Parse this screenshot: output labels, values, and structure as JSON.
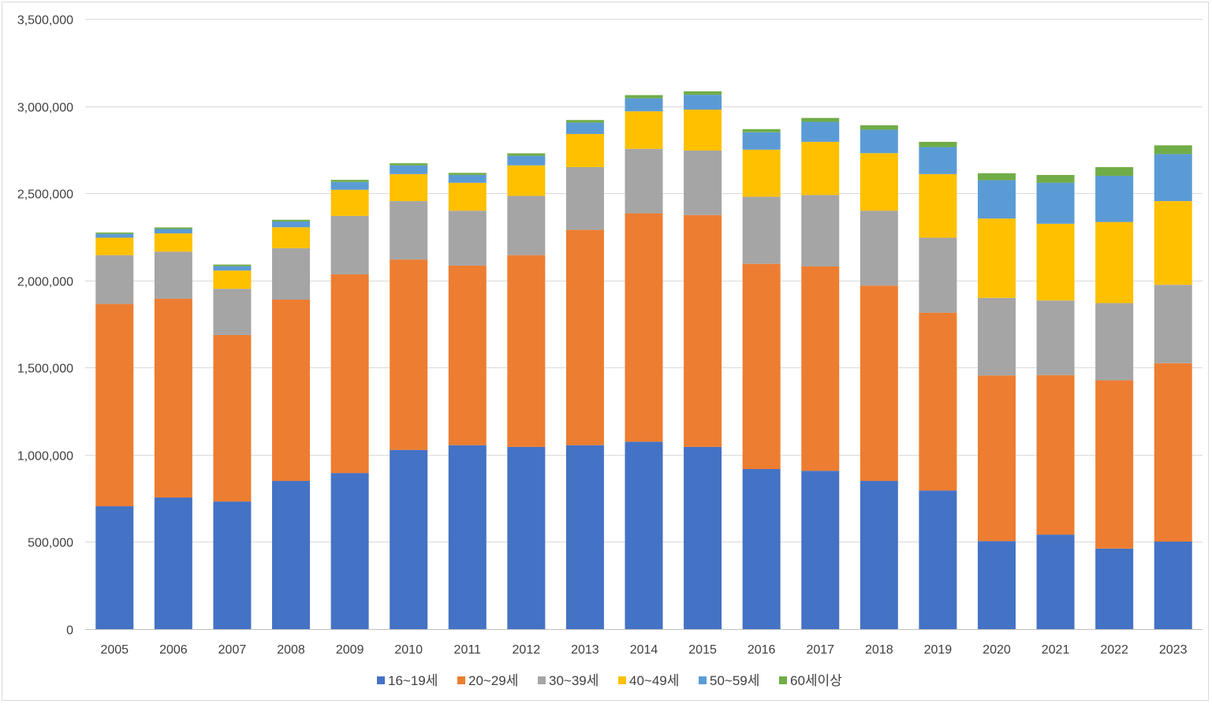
{
  "chart_data": {
    "type": "bar",
    "stacked": true,
    "title": "",
    "xlabel": "",
    "ylabel": "",
    "ylim": [
      0,
      3500000
    ],
    "y_ticks": [
      0,
      500000,
      1000000,
      1500000,
      2000000,
      2500000,
      3000000,
      3500000
    ],
    "y_tick_labels": [
      "0",
      "500,000",
      "1,000,000",
      "1,500,000",
      "2,000,000",
      "2,500,000",
      "3,000,000",
      "3,500,000"
    ],
    "grid": true,
    "legend_position": "bottom",
    "categories": [
      "2005",
      "2006",
      "2007",
      "2008",
      "2009",
      "2010",
      "2011",
      "2012",
      "2013",
      "2014",
      "2015",
      "2016",
      "2017",
      "2018",
      "2019",
      "2020",
      "2021",
      "2022",
      "2023"
    ],
    "series": [
      {
        "name": "16~19세",
        "color": "#4472C4",
        "values": [
          705000,
          755000,
          732000,
          850000,
          895000,
          1028000,
          1055000,
          1045000,
          1055000,
          1075000,
          1045000,
          918000,
          908000,
          850000,
          795000,
          505000,
          542000,
          462000,
          502000
        ]
      },
      {
        "name": "20~29세",
        "color": "#ED7D31",
        "values": [
          1160000,
          1140000,
          955000,
          1040000,
          1140000,
          1092000,
          1030000,
          1100000,
          1235000,
          1310000,
          1330000,
          1177000,
          1172000,
          1120000,
          1020000,
          950000,
          915000,
          965000,
          1023000
        ]
      },
      {
        "name": "30~39세",
        "color": "#A5A5A5",
        "values": [
          280000,
          270000,
          265000,
          295000,
          335000,
          335000,
          315000,
          340000,
          360000,
          370000,
          370000,
          385000,
          410000,
          430000,
          430000,
          445000,
          428000,
          443000,
          450000
        ]
      },
      {
        "name": "40~49세",
        "color": "#FFC000",
        "values": [
          100000,
          105000,
          105000,
          120000,
          150000,
          155000,
          160000,
          175000,
          190000,
          215000,
          235000,
          270000,
          305000,
          330000,
          365000,
          455000,
          440000,
          465000,
          480000
        ]
      },
      {
        "name": "50~59세",
        "color": "#5B9BD5",
        "values": [
          22000,
          25000,
          25000,
          33000,
          45000,
          50000,
          45000,
          55000,
          65000,
          75000,
          85000,
          100000,
          115000,
          135000,
          155000,
          220000,
          235000,
          265000,
          270000
        ]
      },
      {
        "name": "60세이상",
        "color": "#70AD47",
        "values": [
          8000,
          9000,
          9000,
          10000,
          12000,
          12000,
          12000,
          14000,
          15000,
          18000,
          20000,
          18000,
          22000,
          25000,
          30000,
          40000,
          45000,
          50000,
          50000
        ]
      }
    ]
  }
}
